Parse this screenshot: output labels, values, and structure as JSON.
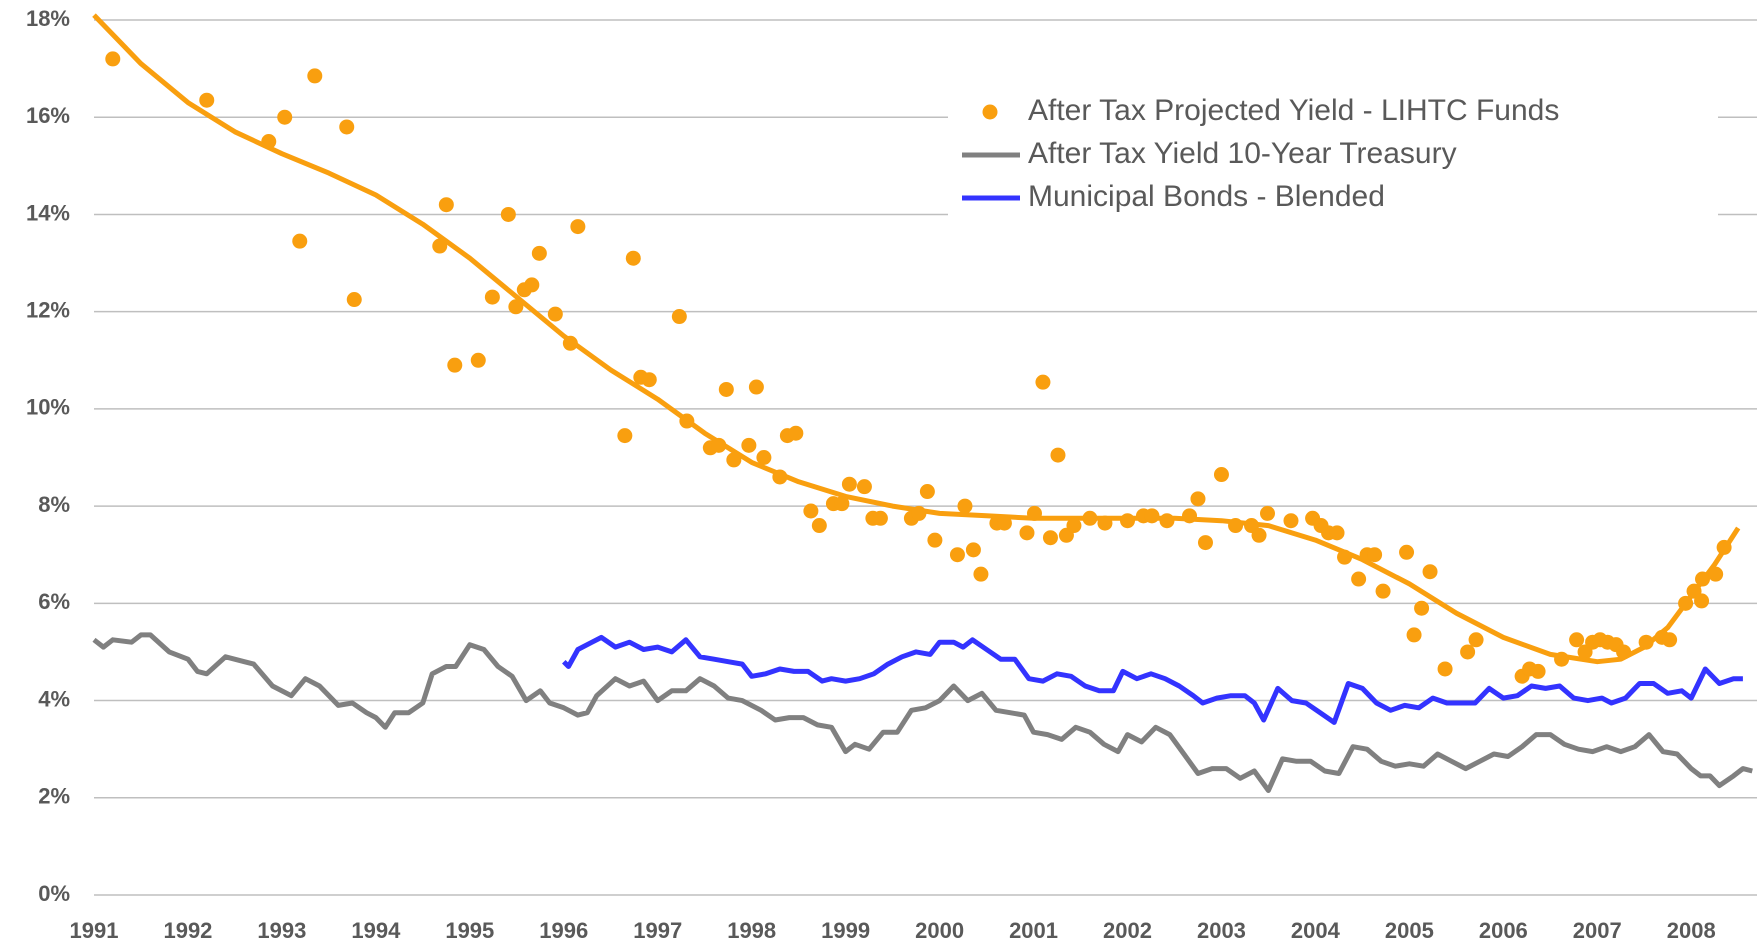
{
  "chart_data": {
    "type": "line",
    "xlim": [
      1991,
      2008.7
    ],
    "ylim": [
      0,
      18
    ],
    "xticks": [
      1991,
      1992,
      1993,
      1994,
      1995,
      1996,
      1997,
      1998,
      1999,
      2000,
      2001,
      2002,
      2003,
      2004,
      2005,
      2006,
      2007,
      2008
    ],
    "yticks": [
      {
        "value": 0,
        "label": "0%"
      },
      {
        "value": 2,
        "label": "2%"
      },
      {
        "value": 4,
        "label": "4%"
      },
      {
        "value": 6,
        "label": "6%"
      },
      {
        "value": 8,
        "label": "8%"
      },
      {
        "value": 10,
        "label": "10%"
      },
      {
        "value": 12,
        "label": "12%"
      },
      {
        "value": 14,
        "label": "14%"
      },
      {
        "value": 16,
        "label": "16%"
      },
      {
        "value": 18,
        "label": "18%"
      }
    ],
    "grid": true,
    "legend": "top-right",
    "series": [
      {
        "name": "After Tax Projected Yield - LIHTC Funds",
        "type": "scatter",
        "color": "#f99f0f",
        "x": [
          1991.2,
          1992.2,
          1992.86,
          1993.03,
          1993.19,
          1993.35,
          1993.69,
          1993.77,
          1994.68,
          1994.75,
          1994.84,
          1995.09,
          1995.24,
          1995.41,
          1995.49,
          1995.58,
          1995.66,
          1995.74,
          1995.91,
          1996.07,
          1996.15,
          1996.65,
          1996.74,
          1996.82,
          1996.91,
          1997.23,
          1997.31,
          1997.56,
          1997.65,
          1997.73,
          1997.81,
          1997.97,
          1998.05,
          1998.13,
          1998.3,
          1998.38,
          1998.47,
          1998.63,
          1998.72,
          1998.87,
          1998.96,
          1999.04,
          1999.2,
          1999.29,
          1999.37,
          1999.7,
          1999.78,
          1999.87,
          1999.95,
          2000.19,
          2000.27,
          2000.36,
          2000.44,
          2000.61,
          2000.69,
          2000.93,
          2001.01,
          2001.1,
          2001.18,
          2001.26,
          2001.35,
          2001.43,
          2001.6,
          2001.76,
          2002.0,
          2002.17,
          2002.26,
          2002.42,
          2002.66,
          2002.75,
          2002.83,
          2003.0,
          2003.15,
          2003.32,
          2003.4,
          2003.49,
          2003.74,
          2003.97,
          2004.06,
          2004.14,
          2004.23,
          2004.31,
          2004.46,
          2004.55,
          2004.63,
          2004.72,
          2004.97,
          2005.05,
          2005.13,
          2005.22,
          2005.38,
          2005.62,
          2005.71,
          2006.2,
          2006.28,
          2006.37,
          2006.62,
          2006.78,
          2006.87,
          2006.95,
          2007.03,
          2007.11,
          2007.2,
          2007.28,
          2007.52,
          2007.69,
          2007.77,
          2007.94,
          2008.03,
          2008.11,
          2008.12,
          2008.26,
          2008.35
        ],
        "values": [
          17.2,
          16.35,
          15.5,
          16.0,
          13.45,
          16.85,
          15.8,
          12.25,
          13.35,
          14.2,
          10.9,
          11.0,
          12.3,
          14.0,
          12.1,
          12.45,
          12.55,
          13.2,
          11.95,
          11.35,
          13.75,
          9.45,
          13.1,
          10.65,
          10.6,
          11.9,
          9.75,
          9.2,
          9.25,
          10.4,
          8.95,
          9.25,
          10.45,
          9.0,
          8.6,
          9.45,
          9.5,
          7.9,
          7.6,
          8.05,
          8.05,
          8.45,
          8.4,
          7.75,
          7.75,
          7.75,
          7.85,
          8.3,
          7.3,
          7.0,
          8.0,
          7.1,
          6.6,
          7.65,
          7.65,
          7.45,
          7.85,
          10.55,
          7.35,
          9.05,
          7.4,
          7.6,
          7.75,
          7.65,
          7.7,
          7.8,
          7.8,
          7.7,
          7.8,
          8.15,
          7.25,
          8.65,
          7.6,
          7.6,
          7.4,
          7.85,
          7.7,
          7.75,
          7.6,
          7.45,
          7.45,
          6.95,
          6.5,
          7.0,
          7.0,
          6.25,
          7.05,
          5.35,
          5.9,
          6.65,
          4.65,
          5.0,
          5.25,
          4.5,
          4.65,
          4.6,
          4.85,
          5.25,
          5.0,
          5.2,
          5.25,
          5.2,
          5.15,
          5.0,
          5.2,
          5.3,
          5.25,
          6.0,
          6.25,
          6.05,
          6.5,
          6.6,
          7.15
        ]
      },
      {
        "name": "After Tax Yield 10-Year Treasury",
        "type": "line",
        "color": "#808080",
        "x": [
          1991.0,
          1991.1,
          1991.2,
          1991.4,
          1991.5,
          1991.6,
          1991.8,
          1992.0,
          1992.1,
          1992.2,
          1992.4,
          1992.6,
          1992.7,
          1992.9,
          1993.1,
          1993.25,
          1993.4,
          1993.6,
          1993.75,
          1993.9,
          1994.0,
          1994.1,
          1994.2,
          1994.35,
          1994.5,
          1994.6,
          1994.75,
          1994.85,
          1995.0,
          1995.15,
          1995.3,
          1995.45,
          1995.6,
          1995.75,
          1995.85,
          1996.0,
          1996.15,
          1996.25,
          1996.35,
          1996.55,
          1996.7,
          1996.85,
          1997.0,
          1997.15,
          1997.3,
          1997.45,
          1997.6,
          1997.75,
          1997.9,
          1998.1,
          1998.25,
          1998.4,
          1998.55,
          1998.7,
          1998.85,
          1999.0,
          1999.1,
          1999.25,
          1999.4,
          1999.55,
          1999.7,
          1999.85,
          2000.0,
          2000.15,
          2000.3,
          2000.45,
          2000.6,
          2000.75,
          2000.9,
          2001.0,
          2001.15,
          2001.3,
          2001.45,
          2001.6,
          2001.75,
          2001.9,
          2002.0,
          2002.15,
          2002.3,
          2002.45,
          2002.6,
          2002.75,
          2002.9,
          2003.05,
          2003.2,
          2003.35,
          2003.5,
          2003.65,
          2003.8,
          2003.95,
          2004.1,
          2004.25,
          2004.4,
          2004.55,
          2004.7,
          2004.85,
          2005.0,
          2005.15,
          2005.3,
          2005.45,
          2005.6,
          2005.75,
          2005.9,
          2006.05,
          2006.2,
          2006.35,
          2006.5,
          2006.65,
          2006.8,
          2006.95,
          2007.1,
          2007.25,
          2007.4,
          2007.55,
          2007.7,
          2007.85,
          2008.0,
          2008.1,
          2008.2,
          2008.3,
          2008.45,
          2008.55,
          2008.65
        ],
        "values": [
          5.25,
          5.1,
          5.25,
          5.2,
          5.35,
          5.35,
          5.0,
          4.85,
          4.6,
          4.55,
          4.9,
          4.8,
          4.75,
          4.3,
          4.1,
          4.45,
          4.3,
          3.9,
          3.95,
          3.75,
          3.65,
          3.45,
          3.75,
          3.75,
          3.95,
          4.55,
          4.7,
          4.7,
          5.15,
          5.05,
          4.7,
          4.5,
          4.0,
          4.2,
          3.95,
          3.85,
          3.7,
          3.75,
          4.1,
          4.45,
          4.3,
          4.4,
          4.0,
          4.2,
          4.2,
          4.45,
          4.3,
          4.05,
          4.0,
          3.8,
          3.6,
          3.65,
          3.65,
          3.5,
          3.45,
          2.95,
          3.1,
          3.0,
          3.35,
          3.35,
          3.8,
          3.85,
          4.0,
          4.3,
          4.0,
          4.15,
          3.8,
          3.75,
          3.7,
          3.35,
          3.3,
          3.2,
          3.45,
          3.35,
          3.1,
          2.95,
          3.3,
          3.15,
          3.45,
          3.3,
          2.9,
          2.5,
          2.6,
          2.6,
          2.4,
          2.55,
          2.15,
          2.8,
          2.75,
          2.75,
          2.55,
          2.5,
          3.05,
          3.0,
          2.75,
          2.65,
          2.7,
          2.65,
          2.9,
          2.75,
          2.6,
          2.75,
          2.9,
          2.85,
          3.05,
          3.3,
          3.3,
          3.1,
          3.0,
          2.95,
          3.05,
          2.95,
          3.05,
          3.3,
          2.95,
          2.9,
          2.6,
          2.45,
          2.45,
          2.25,
          2.45,
          2.6,
          2.55
        ]
      },
      {
        "name": "Municipal Bonds - Blended",
        "type": "line",
        "color": "#3333ff",
        "x": [
          1996.0,
          1996.05,
          1996.15,
          1996.3,
          1996.4,
          1996.55,
          1996.7,
          1996.85,
          1997.0,
          1997.15,
          1997.3,
          1997.45,
          1997.6,
          1997.75,
          1997.9,
          1998.0,
          1998.15,
          1998.3,
          1998.45,
          1998.6,
          1998.75,
          1998.85,
          1999.0,
          1999.15,
          1999.3,
          1999.45,
          1999.6,
          1999.75,
          1999.9,
          2000.0,
          2000.15,
          2000.25,
          2000.35,
          2000.5,
          2000.65,
          2000.8,
          2000.95,
          2001.1,
          2001.25,
          2001.4,
          2001.55,
          2001.7,
          2001.85,
          2001.95,
          2002.1,
          2002.25,
          2002.4,
          2002.55,
          2002.7,
          2002.8,
          2002.95,
          2003.1,
          2003.25,
          2003.35,
          2003.45,
          2003.6,
          2003.75,
          2003.9,
          2004.05,
          2004.2,
          2004.35,
          2004.5,
          2004.65,
          2004.8,
          2004.95,
          2005.1,
          2005.25,
          2005.4,
          2005.55,
          2005.7,
          2005.85,
          2006.0,
          2006.15,
          2006.3,
          2006.45,
          2006.6,
          2006.75,
          2006.9,
          2007.05,
          2007.15,
          2007.3,
          2007.45,
          2007.6,
          2007.75,
          2007.9,
          2008.0,
          2008.15,
          2008.3,
          2008.45,
          2008.55
        ],
        "values": [
          4.8,
          4.7,
          5.05,
          5.2,
          5.3,
          5.1,
          5.2,
          5.05,
          5.1,
          5.0,
          5.25,
          4.9,
          4.85,
          4.8,
          4.75,
          4.5,
          4.55,
          4.65,
          4.6,
          4.6,
          4.4,
          4.45,
          4.4,
          4.45,
          4.55,
          4.75,
          4.9,
          5.0,
          4.95,
          5.2,
          5.2,
          5.1,
          5.25,
          5.05,
          4.85,
          4.85,
          4.45,
          4.4,
          4.55,
          4.5,
          4.3,
          4.2,
          4.2,
          4.6,
          4.45,
          4.55,
          4.45,
          4.3,
          4.1,
          3.95,
          4.05,
          4.1,
          4.1,
          3.95,
          3.6,
          4.25,
          4.0,
          3.95,
          3.75,
          3.55,
          4.35,
          4.25,
          3.95,
          3.8,
          3.9,
          3.85,
          4.05,
          3.95,
          3.95,
          3.95,
          4.25,
          4.05,
          4.1,
          4.3,
          4.25,
          4.3,
          4.05,
          4.0,
          4.05,
          3.95,
          4.05,
          4.35,
          4.35,
          4.15,
          4.2,
          4.05,
          4.65,
          4.35,
          4.45,
          4.45
        ]
      }
    ],
    "trendline": {
      "color": "#f99f0f",
      "x": [
        1991.0,
        1991.5,
        1992.0,
        1992.5,
        1993.0,
        1993.5,
        1994.0,
        1994.5,
        1995.0,
        1995.5,
        1996.0,
        1996.5,
        1997.0,
        1997.5,
        1998.0,
        1998.5,
        1999.0,
        1999.5,
        2000.0,
        2000.5,
        2001.0,
        2001.5,
        2002.0,
        2002.5,
        2003.0,
        2003.5,
        2004.0,
        2004.5,
        2005.0,
        2005.5,
        2006.0,
        2006.5,
        2007.0,
        2007.25,
        2007.5,
        2007.75,
        2008.0,
        2008.25,
        2008.5
      ],
      "values": [
        18.1,
        17.1,
        16.3,
        15.7,
        15.25,
        14.85,
        14.4,
        13.8,
        13.1,
        12.3,
        11.5,
        10.8,
        10.2,
        9.5,
        8.9,
        8.5,
        8.2,
        8.0,
        7.85,
        7.8,
        7.75,
        7.75,
        7.75,
        7.75,
        7.7,
        7.6,
        7.3,
        6.9,
        6.4,
        5.8,
        5.3,
        4.95,
        4.8,
        4.85,
        5.1,
        5.5,
        6.15,
        6.8,
        7.55
      ]
    }
  }
}
